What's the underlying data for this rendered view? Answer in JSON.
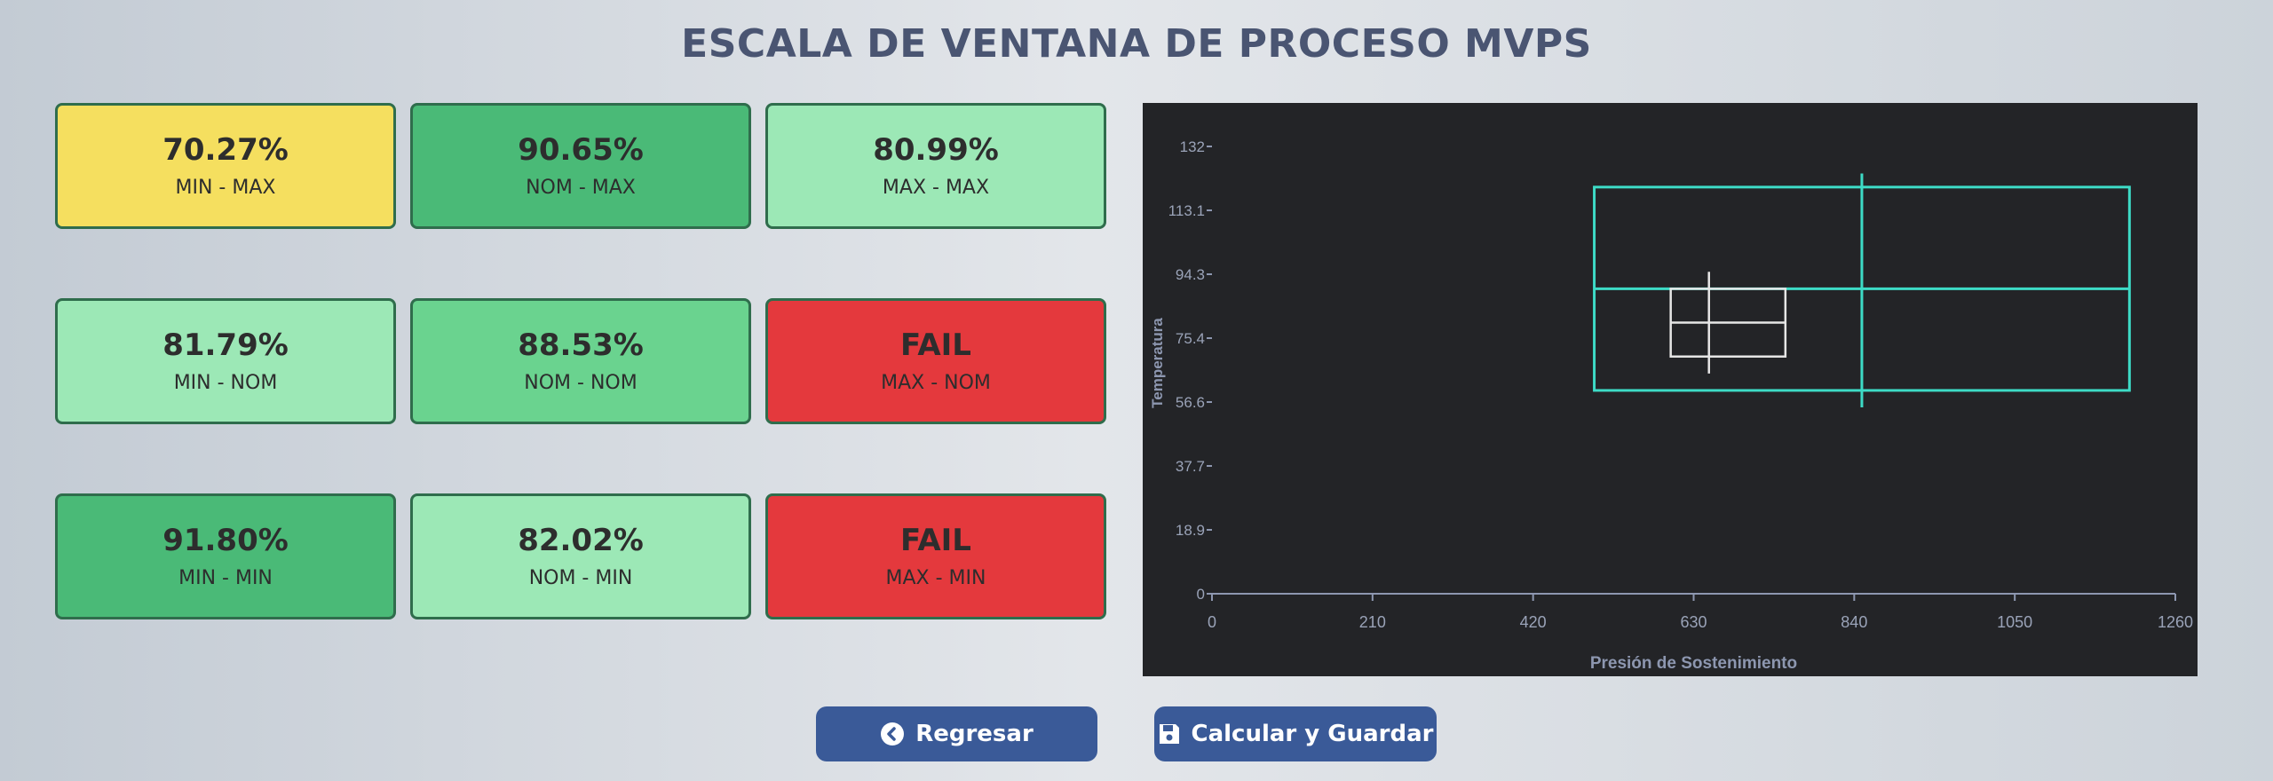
{
  "title": "ESCALA DE VENTANA DE PROCESO MVPS",
  "colors": {
    "yellow": "#f5df5f",
    "green_dark": "#4aba77",
    "green_mid": "#6ad38f",
    "green_light": "#9ce8b6",
    "red": "#e4393d",
    "border": "#2f6d4c"
  },
  "cards": [
    {
      "value": "70.27%",
      "label": "MIN - MAX",
      "color": "#f5df5f"
    },
    {
      "value": "90.65%",
      "label": "NOM - MAX",
      "color": "#4aba77"
    },
    {
      "value": "80.99%",
      "label": "MAX - MAX",
      "color": "#9ce8b6"
    },
    {
      "value": "81.79%",
      "label": "MIN - NOM",
      "color": "#9ce8b6"
    },
    {
      "value": "88.53%",
      "label": "NOM - NOM",
      "color": "#6ad38f"
    },
    {
      "value": "FAIL",
      "label": "MAX - NOM",
      "color": "#e4393d"
    },
    {
      "value": "91.80%",
      "label": "MIN - MIN",
      "color": "#4aba77"
    },
    {
      "value": "82.02%",
      "label": "NOM - MIN",
      "color": "#9ce8b6"
    },
    {
      "value": "FAIL",
      "label": "MAX - MIN",
      "color": "#e4393d"
    }
  ],
  "chart_data": {
    "type": "box-window",
    "xlabel": "Presión de Sostenimiento",
    "ylabel": "Temperatura",
    "xlim": [
      0,
      1260
    ],
    "ylim": [
      0,
      132
    ],
    "xticks": [
      "0",
      "210",
      "420",
      "630",
      "840",
      "1050",
      "1260"
    ],
    "yticks": [
      "0",
      "18.9",
      "37.7",
      "56.6",
      "75.4",
      "94.3",
      "113.1",
      "132"
    ],
    "grid": false,
    "background": "#232427",
    "series": [
      {
        "color": "#3ddbc6",
        "x_min": 500,
        "x_max": 1200,
        "y_min": 60,
        "y_max": 120,
        "x_center": 850,
        "y_center": 90,
        "cross_x_range": [
          500,
          1200
        ],
        "cross_y_range": [
          55,
          124
        ]
      },
      {
        "color": "#e6e6e6",
        "x_min": 600,
        "x_max": 750,
        "y_min": 70,
        "y_max": 90,
        "x_center": 650,
        "y_center": 80,
        "cross_x_range": [
          600,
          750
        ],
        "cross_y_range": [
          65,
          95
        ]
      }
    ]
  },
  "buttons": {
    "back": {
      "label": "Regresar",
      "icon": "chevron-circle-left-icon"
    },
    "save": {
      "label": "Calcular y Guardar",
      "icon": "floppy-disk-icon"
    }
  }
}
